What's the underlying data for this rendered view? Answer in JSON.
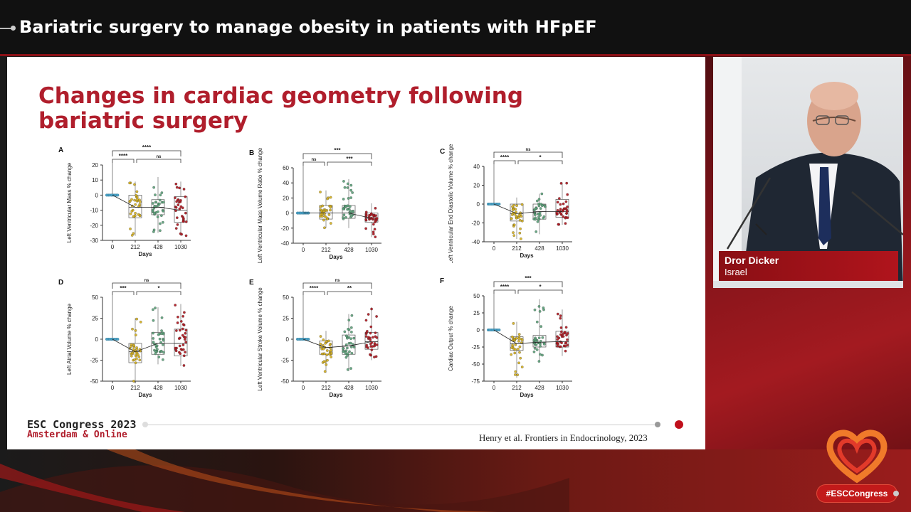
{
  "header": {
    "title": "Bariatric surgery to manage obesity in patients with HFpEF"
  },
  "slide": {
    "title": "Changes in cardiac geometry following bariatric surgery",
    "footer_line1": "ESC Congress 2023",
    "footer_line2": "Amsterdam & Online",
    "citation": "Henry et al. Frontiers in Endocrinology, 2023"
  },
  "speaker": {
    "name": "Dror Dicker",
    "country": "Israel"
  },
  "event": {
    "hashtag": "#ESCCongress"
  },
  "colors": {
    "accent_red": "#b01e2c",
    "day0": "#4aa3c8",
    "day212": "#d8b21c",
    "day428": "#5aa37a",
    "day1030": "#b0141c"
  },
  "chart_data": [
    {
      "type": "box",
      "panel": "A",
      "ylabel": "Left Ventricular Mass % change",
      "xlabel": "Days",
      "categories": [
        "0",
        "212",
        "428",
        "1030"
      ],
      "yticks": [
        "20",
        "10",
        "0",
        "-10",
        "-20",
        "-30"
      ],
      "ylim": [
        -30,
        20
      ],
      "medians": [
        0,
        -8,
        -8,
        -10
      ],
      "q1": [
        0,
        -15,
        -13,
        -18
      ],
      "q3": [
        0,
        0,
        -3,
        -1
      ],
      "min": [
        0,
        -27,
        -25,
        -27
      ],
      "max": [
        0,
        9,
        12,
        9
      ],
      "significance": [
        {
          "from": "0",
          "to": "212",
          "label": "****"
        },
        {
          "from": "212",
          "to": "1030",
          "label": "ns"
        },
        {
          "from": "0",
          "to": "1030",
          "label": "****"
        }
      ]
    },
    {
      "type": "box",
      "panel": "B",
      "ylabel": "Left Ventricular Mass Volume Ratio % change",
      "xlabel": "Days",
      "categories": [
        "0",
        "212",
        "428",
        "1030"
      ],
      "yticks": [
        "60",
        "40",
        "20",
        "0",
        "-20",
        "-40"
      ],
      "ylim": [
        -40,
        60
      ],
      "medians": [
        0,
        0,
        0,
        -7
      ],
      "q1": [
        0,
        -8,
        -7,
        -12
      ],
      "q3": [
        0,
        10,
        10,
        0
      ],
      "min": [
        0,
        -20,
        -20,
        -32
      ],
      "max": [
        0,
        30,
        45,
        13
      ],
      "significance": [
        {
          "from": "0",
          "to": "212",
          "label": "ns"
        },
        {
          "from": "212",
          "to": "1030",
          "label": "***"
        },
        {
          "from": "0",
          "to": "1030",
          "label": "***"
        }
      ]
    },
    {
      "type": "box",
      "panel": "C",
      "ylabel": "Left Ventricular End Diastolic Volume % change",
      "xlabel": "Days",
      "categories": [
        "0",
        "212",
        "428",
        "1030"
      ],
      "yticks": [
        "40",
        "20",
        "0",
        "-20",
        "-40"
      ],
      "ylim": [
        -40,
        40
      ],
      "medians": [
        0,
        -10,
        -8,
        -8
      ],
      "q1": [
        0,
        -18,
        -16,
        -14
      ],
      "q3": [
        0,
        0,
        0,
        5
      ],
      "min": [
        0,
        -37,
        -32,
        -22
      ],
      "max": [
        0,
        7,
        11,
        23
      ],
      "significance": [
        {
          "from": "0",
          "to": "212",
          "label": "****"
        },
        {
          "from": "212",
          "to": "1030",
          "label": "*"
        },
        {
          "from": "0",
          "to": "1030",
          "label": "ns"
        }
      ]
    },
    {
      "type": "box",
      "panel": "D",
      "ylabel": "Left Atrial Volume % change",
      "xlabel": "Days",
      "categories": [
        "0",
        "212",
        "428",
        "1030"
      ],
      "yticks": [
        "50",
        "25",
        "0",
        "-25",
        "-50"
      ],
      "ylim": [
        -50,
        50
      ],
      "medians": [
        0,
        -15,
        -5,
        -5
      ],
      "q1": [
        0,
        -28,
        -18,
        -20
      ],
      "q3": [
        0,
        -5,
        8,
        12
      ],
      "min": [
        0,
        -50,
        -30,
        -32
      ],
      "max": [
        0,
        25,
        38,
        42
      ],
      "significance": [
        {
          "from": "0",
          "to": "212",
          "label": "***"
        },
        {
          "from": "212",
          "to": "1030",
          "label": "*"
        },
        {
          "from": "0",
          "to": "1030",
          "label": "ns"
        }
      ]
    },
    {
      "type": "box",
      "panel": "E",
      "ylabel": "Left Ventricular Stroke Volume % change",
      "xlabel": "Days",
      "categories": [
        "0",
        "212",
        "428",
        "1030"
      ],
      "yticks": [
        "50",
        "25",
        "0",
        "-25",
        "-50"
      ],
      "ylim": [
        -50,
        50
      ],
      "medians": [
        0,
        -10,
        -8,
        -3
      ],
      "q1": [
        0,
        -18,
        -18,
        -12
      ],
      "q3": [
        0,
        -2,
        5,
        8
      ],
      "min": [
        0,
        -40,
        -38,
        -25
      ],
      "max": [
        0,
        10,
        30,
        38
      ],
      "significance": [
        {
          "from": "0",
          "to": "212",
          "label": "****"
        },
        {
          "from": "212",
          "to": "1030",
          "label": "**"
        },
        {
          "from": "0",
          "to": "1030",
          "label": "ns"
        }
      ]
    },
    {
      "type": "box",
      "panel": "F",
      "ylabel": "Cardiac Output % change",
      "xlabel": "Days",
      "categories": [
        "0",
        "212",
        "428",
        "1030"
      ],
      "yticks": [
        "50",
        "25",
        "0",
        "-25",
        "-50",
        "-75"
      ],
      "ylim": [
        -75,
        50
      ],
      "medians": [
        0,
        -20,
        -18,
        -17
      ],
      "q1": [
        0,
        -30,
        -25,
        -25
      ],
      "q3": [
        0,
        -10,
        -8,
        -2
      ],
      "min": [
        0,
        -70,
        -47,
        -38
      ],
      "max": [
        0,
        12,
        45,
        30
      ],
      "significance": [
        {
          "from": "0",
          "to": "212",
          "label": "****"
        },
        {
          "from": "212",
          "to": "1030",
          "label": "*"
        },
        {
          "from": "0",
          "to": "1030",
          "label": "***"
        }
      ]
    }
  ]
}
